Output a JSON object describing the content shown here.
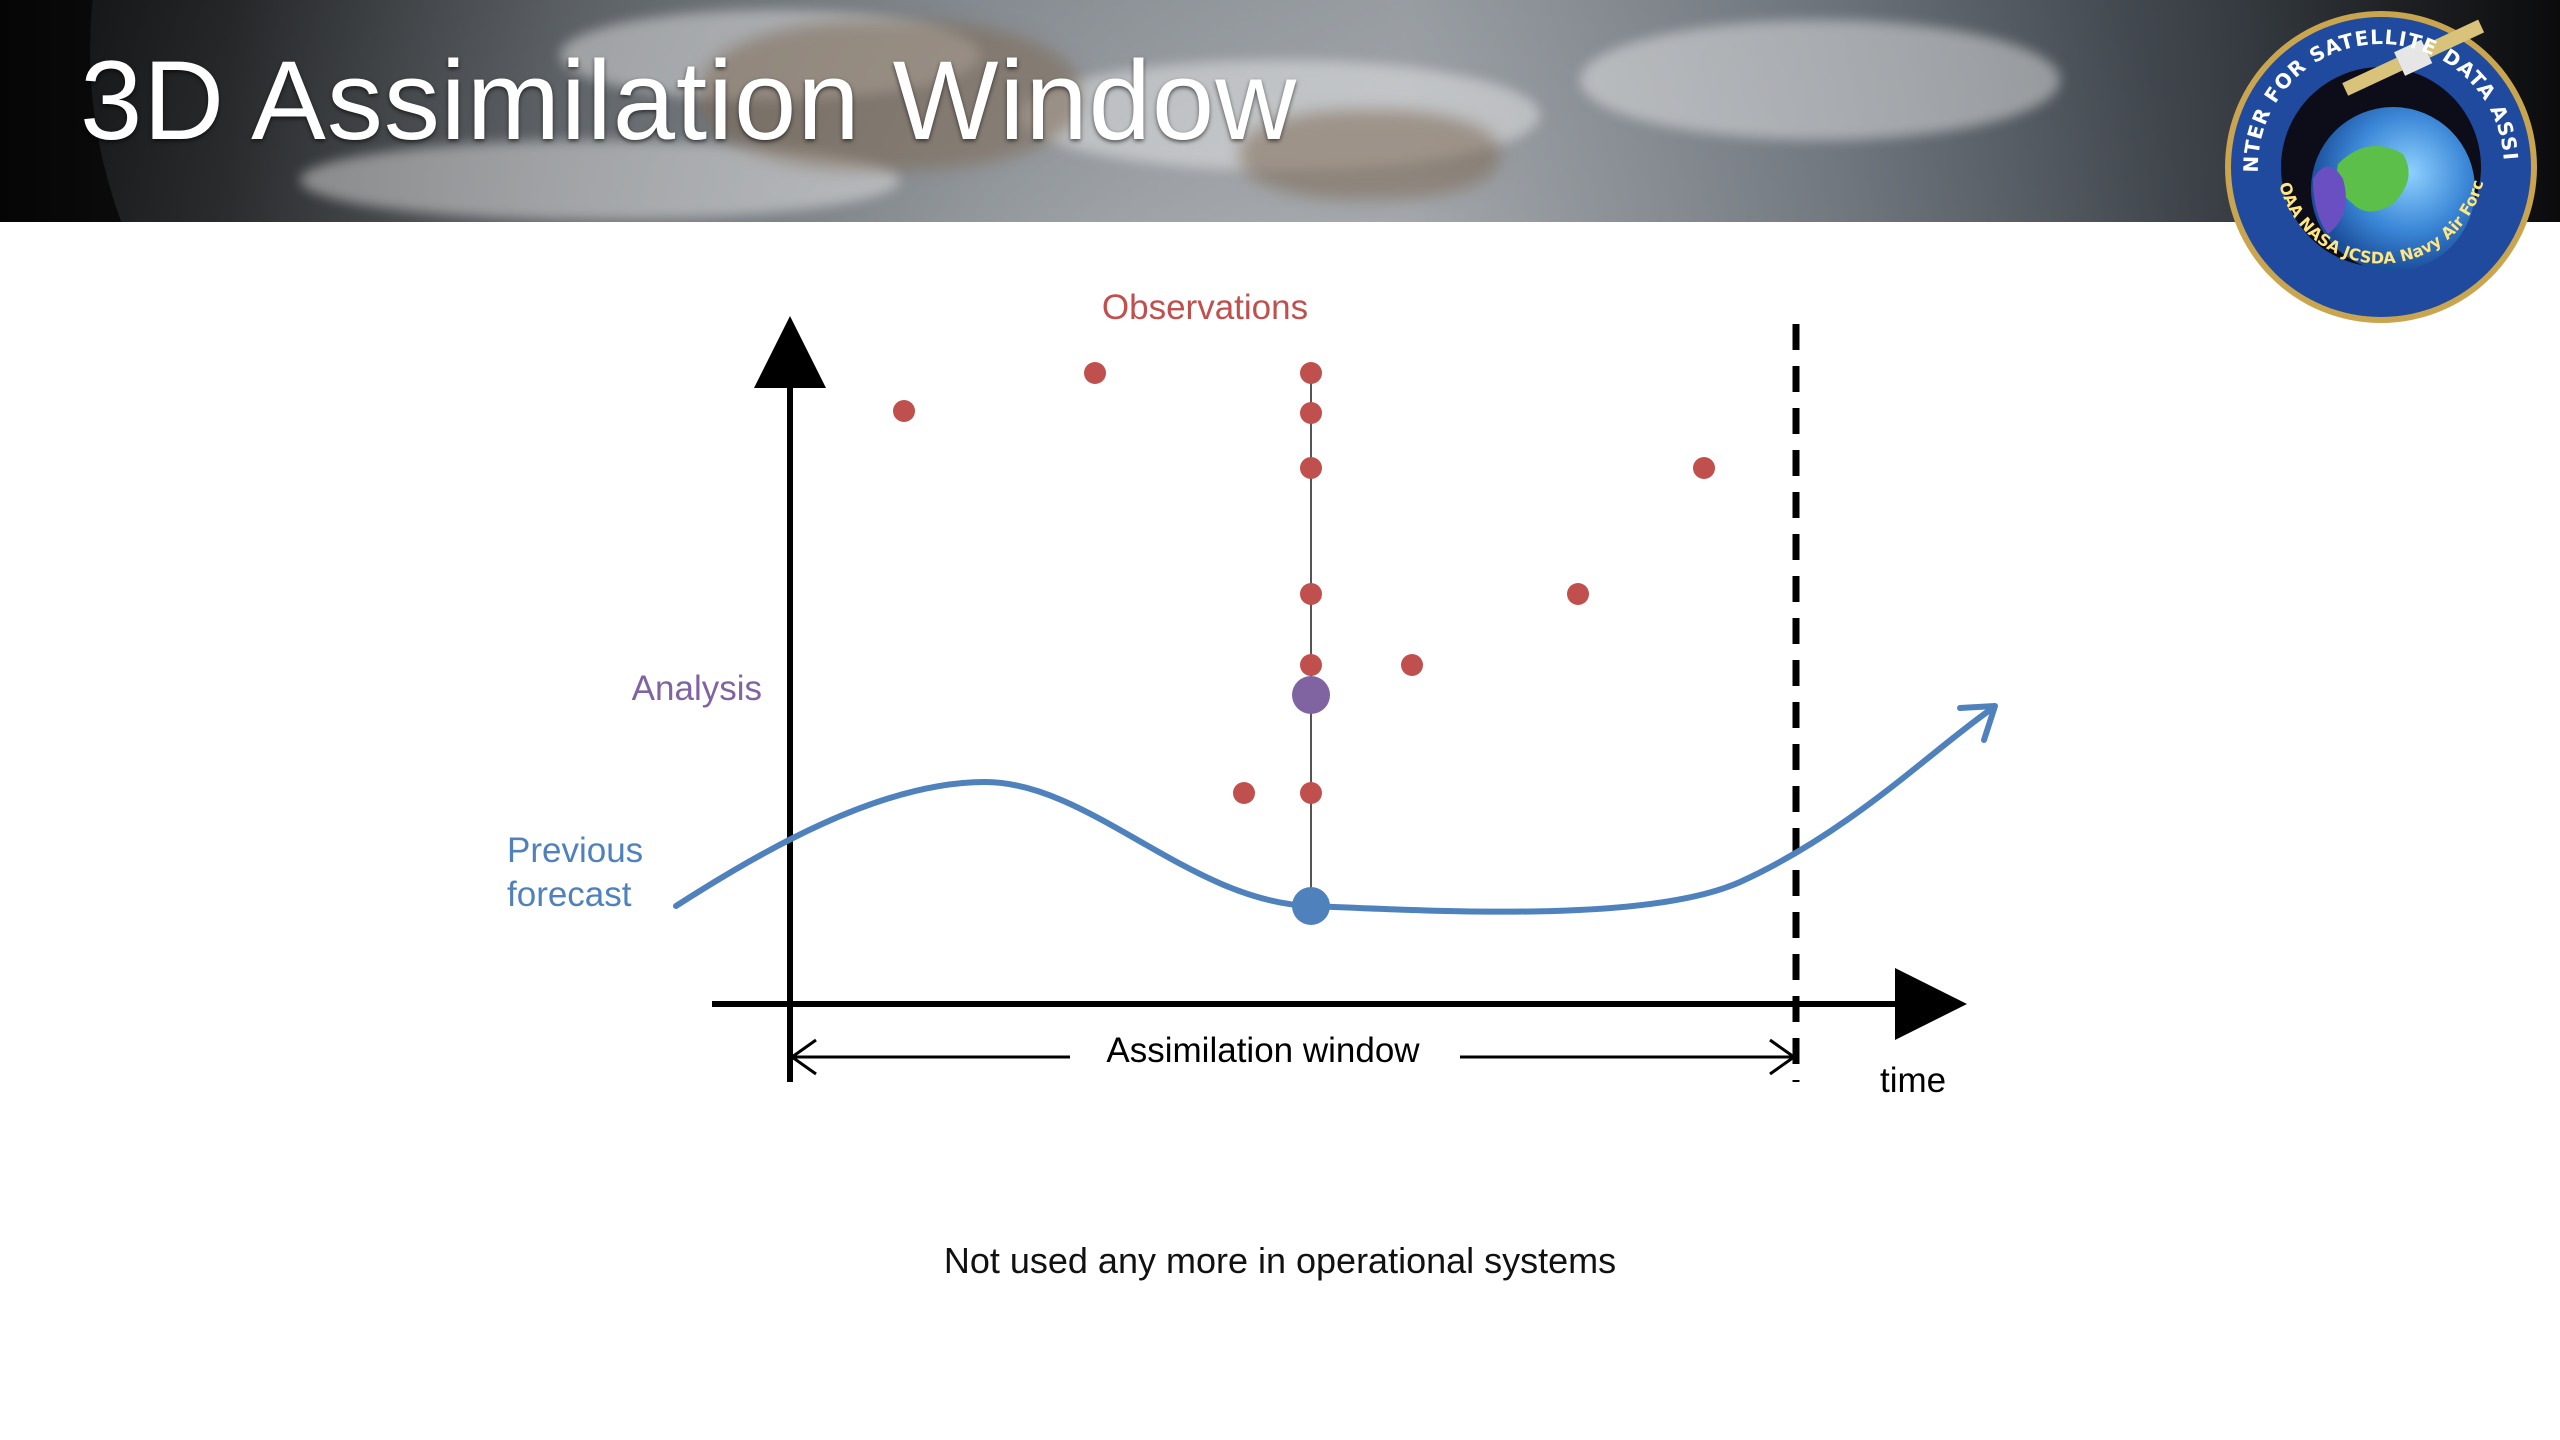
{
  "slide": {
    "title": "3D Assimilation Window",
    "footer_note": "Not used any more in operational systems"
  },
  "logo": {
    "ring_text": "JOINT CENTER FOR SATELLITE DATA ASSIMILATION",
    "bottom_text": "NOAA NASA JCSDA Navy Air Force"
  },
  "diagram": {
    "labels": {
      "observations": "Observations",
      "analysis": "Analysis",
      "previous_forecast_line1": "Previous",
      "previous_forecast_line2": "forecast",
      "assimilation_window": "Assimilation window",
      "time_axis": "time"
    },
    "colors": {
      "observation": "#c0504d",
      "analysis": "#8064a2",
      "forecast": "#4f81bd",
      "axis": "#000000"
    }
  }
}
